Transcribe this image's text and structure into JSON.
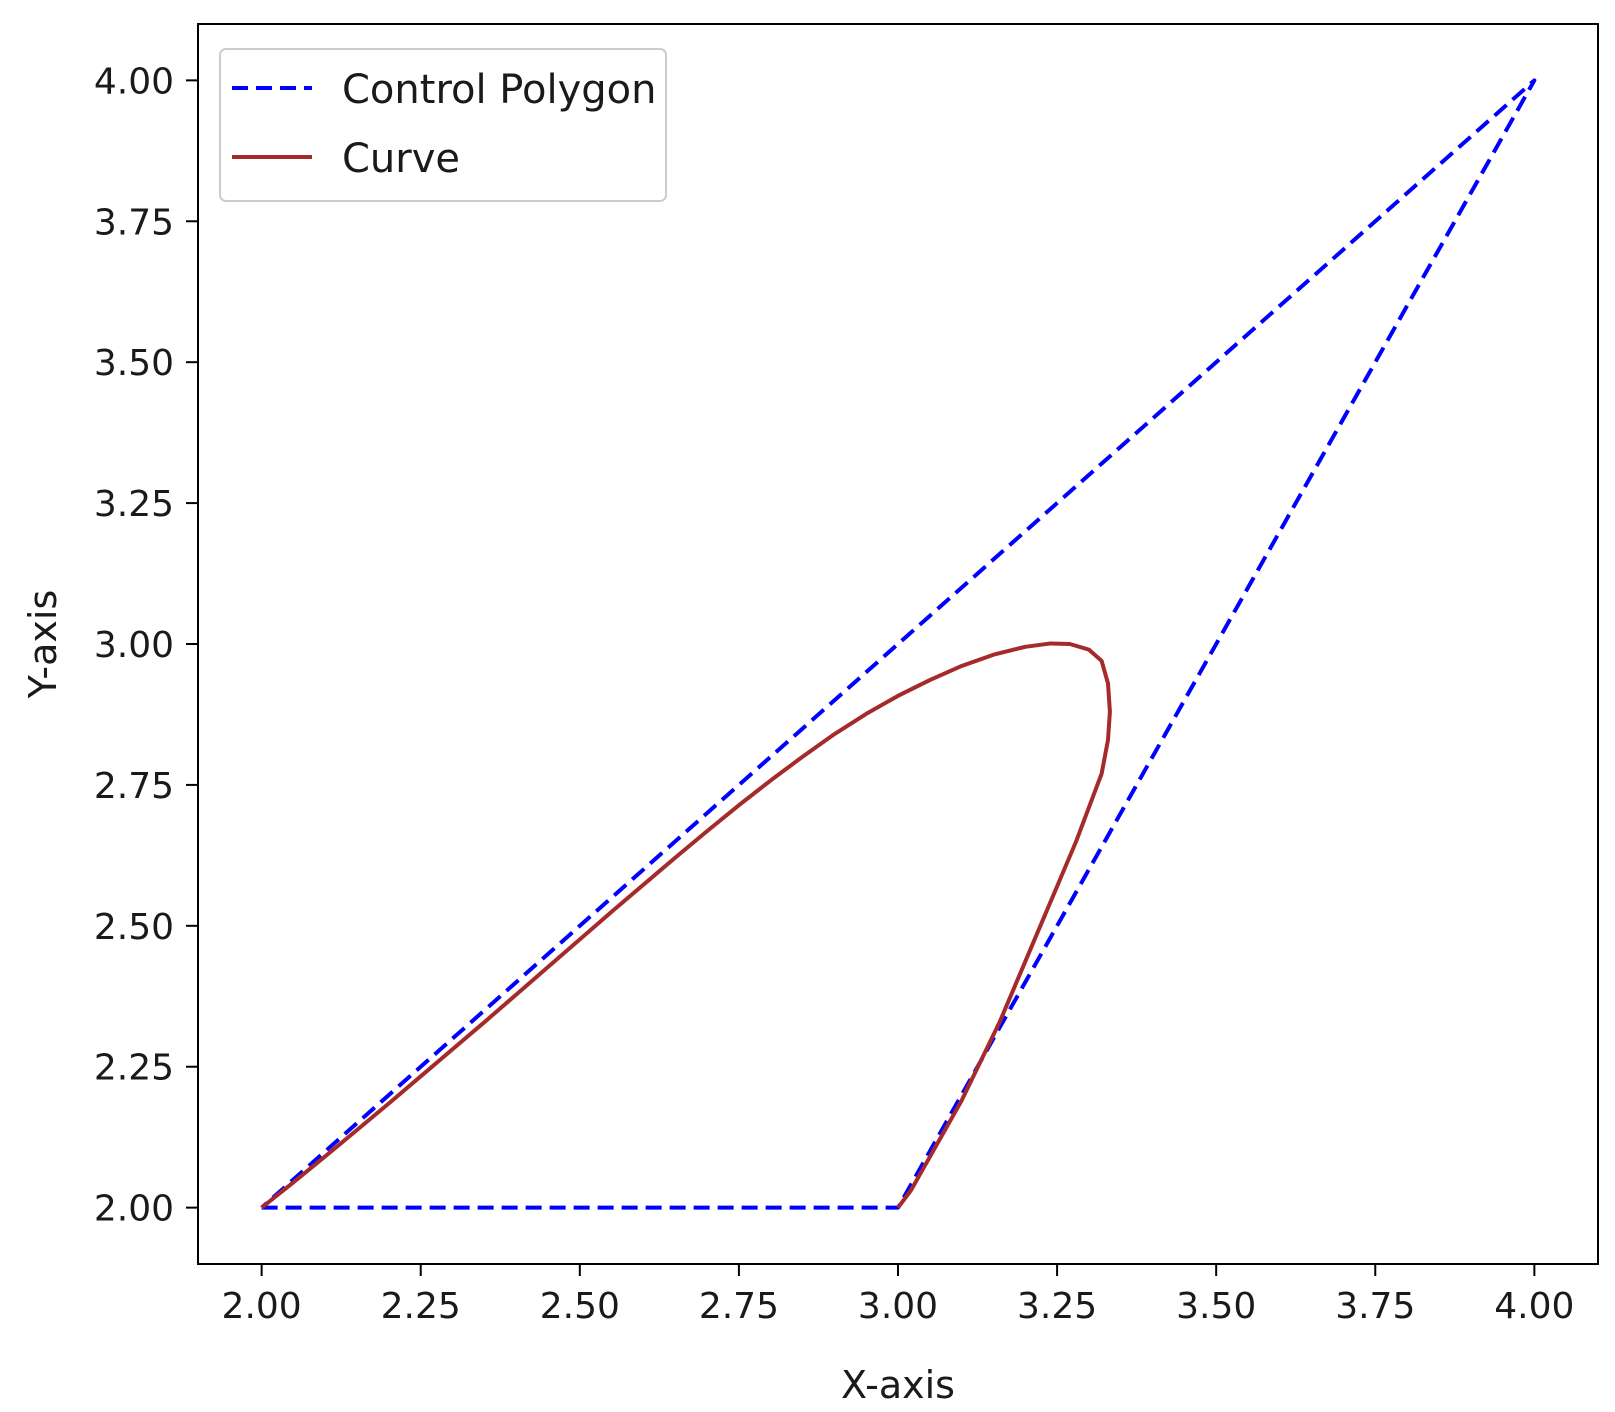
{
  "chart_data": {
    "type": "line",
    "title": "",
    "xlabel": "X-axis",
    "ylabel": "Y-axis",
    "xlim": [
      1.9,
      4.1
    ],
    "ylim": [
      1.9,
      4.1
    ],
    "xticks": [
      2.0,
      2.25,
      2.5,
      2.75,
      3.0,
      3.25,
      3.5,
      3.75,
      4.0
    ],
    "yticks": [
      2.0,
      2.25,
      2.5,
      2.75,
      3.0,
      3.25,
      3.5,
      3.75,
      4.0
    ],
    "xtick_labels": [
      "2.00",
      "2.25",
      "2.50",
      "2.75",
      "3.00",
      "3.25",
      "3.50",
      "3.75",
      "4.00"
    ],
    "ytick_labels": [
      "2.00",
      "2.25",
      "2.50",
      "2.75",
      "3.00",
      "3.25",
      "3.50",
      "3.75",
      "4.00"
    ],
    "grid": false,
    "legend_position": "upper-left",
    "series": [
      {
        "name": "Control Polygon",
        "style": "dashed",
        "color": "#0000ff",
        "x": [
          2.0,
          3.0,
          4.0,
          2.0
        ],
        "y": [
          2.0,
          2.0,
          4.0,
          2.0
        ]
      },
      {
        "name": "Curve",
        "style": "solid",
        "color": "#a52a2a",
        "x": [
          2.0,
          2.05,
          2.1,
          2.15,
          2.2,
          2.25,
          2.3,
          2.35,
          2.4,
          2.45,
          2.5,
          2.55,
          2.6,
          2.65,
          2.7,
          2.75,
          2.8,
          2.85,
          2.9,
          2.95,
          3.0,
          3.05,
          3.1,
          3.15,
          3.2,
          3.24,
          3.27,
          3.3,
          3.32,
          3.33,
          3.333,
          3.33,
          3.32,
          3.3,
          3.28,
          3.25,
          3.22,
          3.19,
          3.16,
          3.13,
          3.1,
          3.07,
          3.04,
          3.02,
          3.0
        ],
        "y": [
          2.0,
          2.045,
          2.091,
          2.138,
          2.185,
          2.233,
          2.281,
          2.329,
          2.378,
          2.427,
          2.476,
          2.525,
          2.573,
          2.621,
          2.668,
          2.714,
          2.758,
          2.8,
          2.84,
          2.876,
          2.908,
          2.936,
          2.961,
          2.981,
          2.995,
          3.001,
          3.0,
          2.99,
          2.97,
          2.93,
          2.88,
          2.83,
          2.77,
          2.71,
          2.65,
          2.57,
          2.49,
          2.41,
          2.33,
          2.26,
          2.19,
          2.13,
          2.07,
          2.03,
          2.0
        ]
      }
    ]
  }
}
